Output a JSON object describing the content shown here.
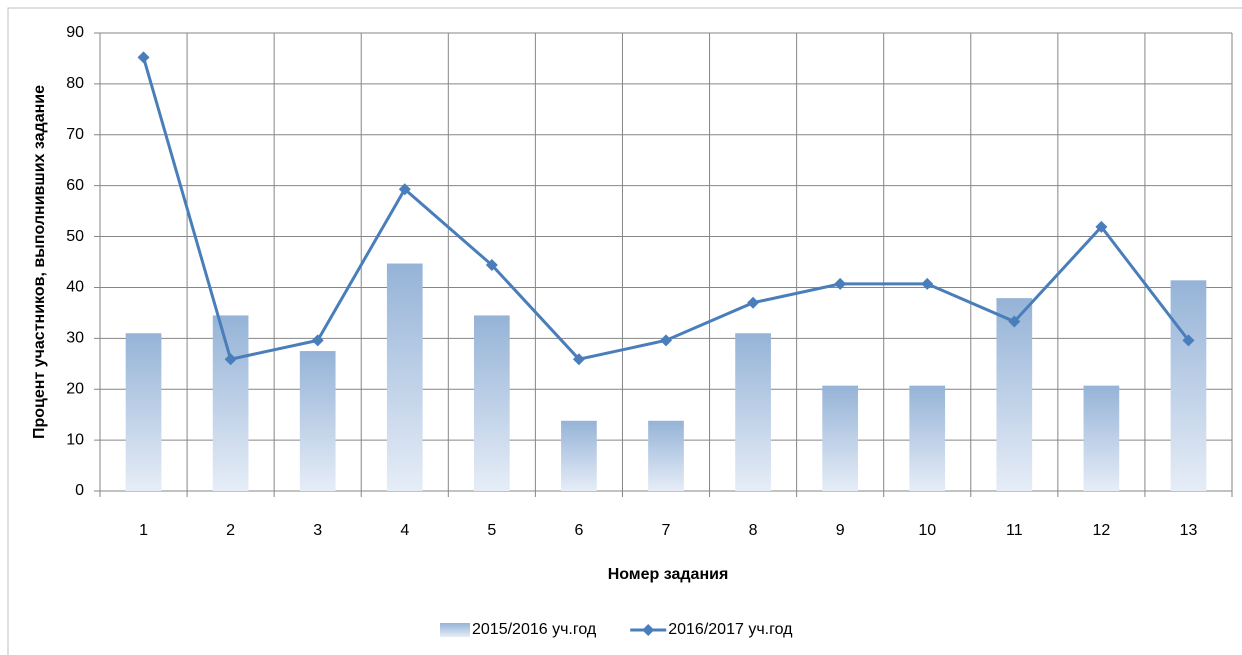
{
  "chart_data": {
    "type": "bar",
    "y_label": "Процент участников, выполнивших задание",
    "x_label": "Номер задания",
    "categories": [
      "1",
      "2",
      "3",
      "4",
      "5",
      "6",
      "7",
      "8",
      "9",
      "10",
      "11",
      "12",
      "13"
    ],
    "series": [
      {
        "name": "2015/2016 уч.год",
        "type": "bar",
        "color": "#95b3d7",
        "values": [
          31,
          34.5,
          27.5,
          44.7,
          34.5,
          13.8,
          13.8,
          31,
          20.7,
          20.7,
          37.9,
          20.7,
          41.4
        ]
      },
      {
        "name": "2016/2017 уч.год",
        "type": "line",
        "color": "#4a7ebb",
        "values": [
          85.2,
          25.9,
          29.6,
          59.3,
          44.4,
          25.9,
          29.6,
          37,
          40.7,
          40.7,
          33.3,
          51.9,
          29.6
        ]
      }
    ],
    "ylim": [
      0,
      90
    ],
    "yticks": [
      0,
      10,
      20,
      30,
      40,
      50,
      60,
      70,
      80,
      90
    ],
    "grid": true,
    "legend": "bottom"
  }
}
